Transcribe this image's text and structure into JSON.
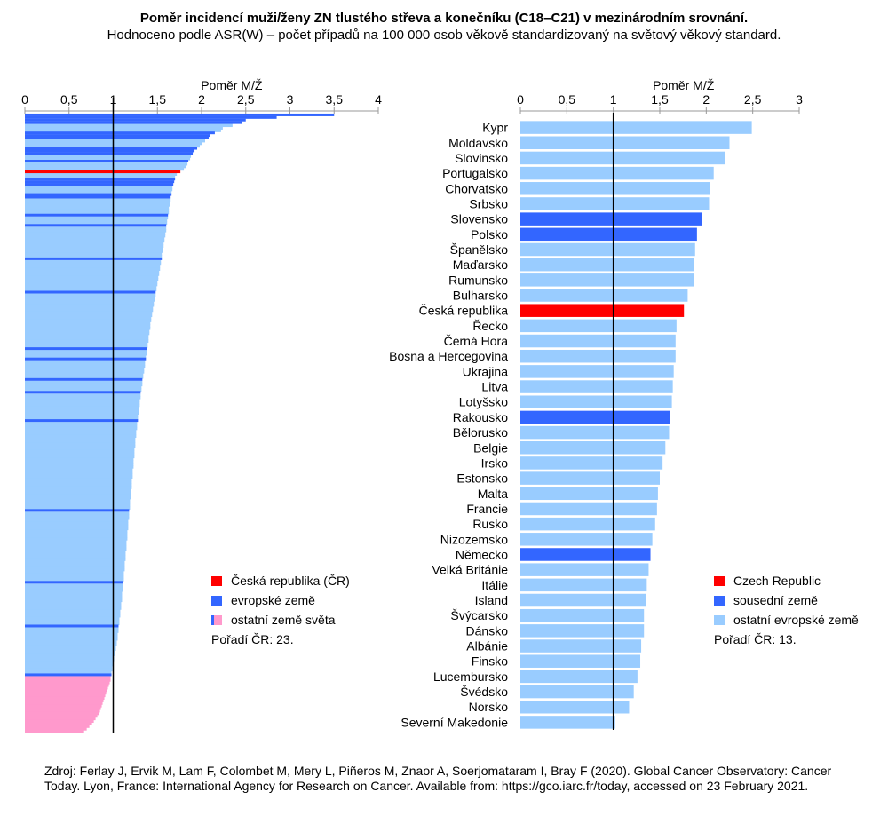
{
  "title": "Poměr incidencí muži/ženy ZN tlustého střeva a konečníku (C18–C21) v mezinárodním srovnání.",
  "subtitle": "Hodnoceno podle ASR(W) – počet případů na 100 000 osob věkově standardizovaný na světový věkový standard.",
  "source": "Zdroj: Ferlay J, Ervik M, Lam F, Colombet M, Mery L, Piñeros M, Znaor A, Soerjomataram I, Bray F (2020). Global Cancer Observatory: Cancer Today. Lyon, France: International Agency for Research on Cancer. Available from: https://gco.iarc.fr/today, accessed on 23 February 2021.",
  "colors": {
    "czech": "#ff0000",
    "european": "#3366ff",
    "world": "#ff99cc",
    "other_europe": "#99ccff",
    "reference_line": "#000000"
  },
  "chart_data": [
    {
      "type": "bar",
      "orientation": "horizontal",
      "xlabel": "Poměr M/Ž",
      "xlim": [
        0,
        4
      ],
      "xticks": [
        "0",
        "0,5",
        "1",
        "1,5",
        "2",
        "2,5",
        "3",
        "3,5",
        "4"
      ],
      "reference_line": 1,
      "legend_position": "bottom-right",
      "legend": [
        {
          "label": "Česká republika (ČR)",
          "category": "czech"
        },
        {
          "label": "evropské země",
          "category": "european"
        },
        {
          "label": "ostatní země světa",
          "category": "world"
        }
      ],
      "note": "Pořadí ČR: 23.",
      "values": [
        3.5,
        2.85,
        2.5,
        2.46,
        2.35,
        2.24,
        2.22,
        2.15,
        2.1,
        2.08,
        2.04,
        2.0,
        1.98,
        1.95,
        1.92,
        1.9,
        1.88,
        1.87,
        1.85,
        1.84,
        1.82,
        1.8,
        1.76,
        1.72,
        1.7,
        1.7,
        1.69,
        1.68,
        1.67,
        1.67,
        1.66,
        1.66,
        1.65,
        1.65,
        1.64,
        1.64,
        1.63,
        1.63,
        1.63,
        1.62,
        1.62,
        1.61,
        1.61,
        1.6,
        1.6,
        1.6,
        1.59,
        1.59,
        1.58,
        1.58,
        1.57,
        1.57,
        1.56,
        1.56,
        1.55,
        1.55,
        1.55,
        1.54,
        1.54,
        1.53,
        1.53,
        1.52,
        1.52,
        1.51,
        1.51,
        1.5,
        1.5,
        1.49,
        1.49,
        1.48,
        1.48,
        1.47,
        1.47,
        1.46,
        1.46,
        1.45,
        1.45,
        1.44,
        1.44,
        1.43,
        1.43,
        1.42,
        1.42,
        1.42,
        1.41,
        1.41,
        1.4,
        1.4,
        1.4,
        1.39,
        1.39,
        1.38,
        1.38,
        1.38,
        1.37,
        1.37,
        1.36,
        1.36,
        1.36,
        1.35,
        1.35,
        1.34,
        1.34,
        1.33,
        1.33,
        1.33,
        1.32,
        1.32,
        1.31,
        1.31,
        1.31,
        1.3,
        1.3,
        1.3,
        1.29,
        1.29,
        1.29,
        1.28,
        1.28,
        1.28,
        1.27,
        1.27,
        1.27,
        1.26,
        1.26,
        1.26,
        1.25,
        1.25,
        1.25,
        1.25,
        1.24,
        1.24,
        1.24,
        1.24,
        1.23,
        1.23,
        1.23,
        1.23,
        1.22,
        1.22,
        1.22,
        1.22,
        1.21,
        1.21,
        1.21,
        1.21,
        1.2,
        1.2,
        1.2,
        1.2,
        1.19,
        1.19,
        1.19,
        1.19,
        1.18,
        1.18,
        1.18,
        1.18,
        1.17,
        1.17,
        1.17,
        1.17,
        1.16,
        1.16,
        1.16,
        1.16,
        1.15,
        1.15,
        1.15,
        1.15,
        1.14,
        1.14,
        1.14,
        1.14,
        1.13,
        1.13,
        1.13,
        1.13,
        1.12,
        1.12,
        1.12,
        1.12,
        1.11,
        1.11,
        1.11,
        1.11,
        1.1,
        1.1,
        1.1,
        1.1,
        1.09,
        1.09,
        1.09,
        1.08,
        1.08,
        1.08,
        1.07,
        1.07,
        1.07,
        1.06,
        1.06,
        1.06,
        1.05,
        1.05,
        1.05,
        1.04,
        1.04,
        1.03,
        1.03,
        1.02,
        1.02,
        1.01,
        1.01,
        1.0,
        1.0,
        0.99,
        0.99,
        0.98,
        0.98,
        0.97,
        0.97,
        0.96,
        0.95,
        0.94,
        0.93,
        0.92,
        0.91,
        0.9,
        0.89,
        0.88,
        0.87,
        0.86,
        0.85,
        0.84,
        0.82,
        0.8,
        0.78,
        0.76,
        0.73,
        0.7,
        0.67
      ],
      "categories": "EEEEWWWEEEWWWEEEWWEWWWCWWEEEWWWEEWWWWWWEWWWEWWWWWWWWWWWWEWWWWWWWWWWWWEWWWWWWWWWWWWWWWWWWWWWEWWWEWWWWWWWEWWWWEWWWWWWWWWWEWWWWWWWWWWWWWWWWWWWWWWWWWWWWWWWWWWEWWWWWWWWWWWWWWWWWWWWWWWWWWWEWWWWWWWWWWWWWWWWEWWWWWWWWWWWWWWWWWWEPPPPPPPPPPPPPPPPPPPPPPPPPPPPPPPPPPPPPPPPPPPP"
    },
    {
      "type": "bar",
      "orientation": "horizontal",
      "xlabel": "Poměr M/Ž",
      "xlim": [
        0,
        3
      ],
      "xticks": [
        "0",
        "0,5",
        "1",
        "1,5",
        "2",
        "2,5",
        "3"
      ],
      "reference_line": 1,
      "legend_position": "bottom-right",
      "legend": [
        {
          "label": "Czech Republic",
          "category": "czech"
        },
        {
          "label": "sousední země",
          "category": "european"
        },
        {
          "label": "ostatní evropské země",
          "category": "other_europe"
        }
      ],
      "note": "Pořadí ČR: 13.",
      "categories": [
        "Kypr",
        "Moldavsko",
        "Slovinsko",
        "Portugalsko",
        "Chorvatsko",
        "Srbsko",
        "Slovensko",
        "Polsko",
        "Španělsko",
        "Maďarsko",
        "Rumunsko",
        "Bulharsko",
        "Česká republika",
        "Řecko",
        "Černá Hora",
        "Bosna a Hercegovina",
        "Ukrajina",
        "Litva",
        "Lotyšsko",
        "Rakousko",
        "Bělorusko",
        "Belgie",
        "Irsko",
        "Estonsko",
        "Malta",
        "Francie",
        "Rusko",
        "Nizozemsko",
        "Německo",
        "Velká Británie",
        "Itálie",
        "Island",
        "Švýcarsko",
        "Dánsko",
        "Albánie",
        "Finsko",
        "Lucembursko",
        "Švédsko",
        "Norsko",
        "Severní Makedonie"
      ],
      "values": [
        2.49,
        2.25,
        2.2,
        2.08,
        2.04,
        2.03,
        1.95,
        1.9,
        1.88,
        1.87,
        1.87,
        1.8,
        1.76,
        1.68,
        1.67,
        1.67,
        1.65,
        1.64,
        1.63,
        1.61,
        1.6,
        1.56,
        1.53,
        1.5,
        1.48,
        1.47,
        1.45,
        1.42,
        1.4,
        1.38,
        1.36,
        1.35,
        1.33,
        1.33,
        1.3,
        1.29,
        1.26,
        1.22,
        1.17,
        1.02
      ],
      "series_categories": [
        "other_europe",
        "other_europe",
        "other_europe",
        "other_europe",
        "other_europe",
        "other_europe",
        "european",
        "european",
        "other_europe",
        "other_europe",
        "other_europe",
        "other_europe",
        "czech",
        "other_europe",
        "other_europe",
        "other_europe",
        "other_europe",
        "other_europe",
        "other_europe",
        "european",
        "other_europe",
        "other_europe",
        "other_europe",
        "other_europe",
        "other_europe",
        "other_europe",
        "other_europe",
        "other_europe",
        "european",
        "other_europe",
        "other_europe",
        "other_europe",
        "other_europe",
        "other_europe",
        "other_europe",
        "other_europe",
        "other_europe",
        "other_europe",
        "other_europe",
        "other_europe"
      ]
    }
  ]
}
